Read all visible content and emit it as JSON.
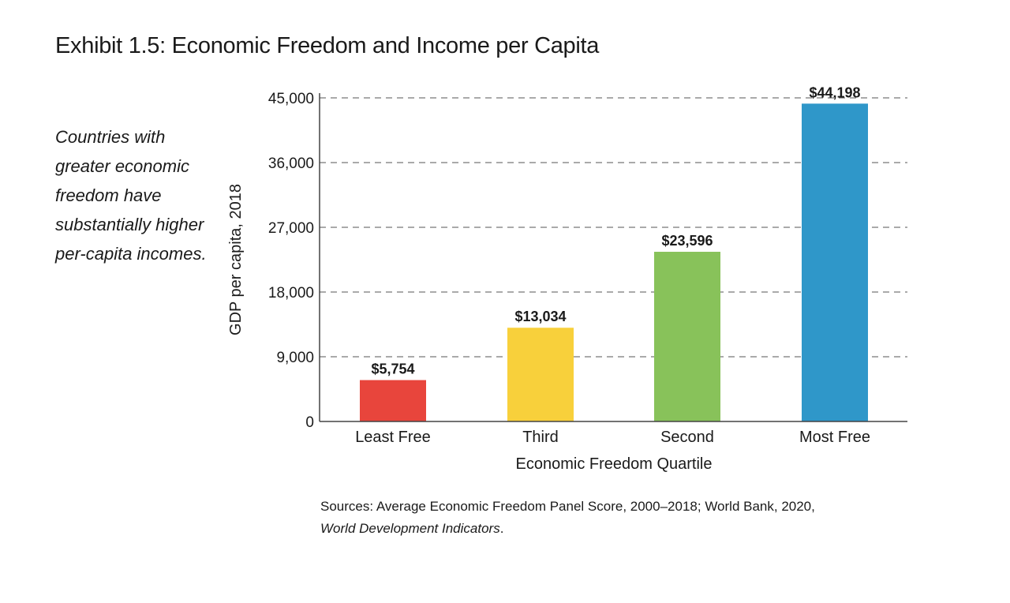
{
  "title": "Exhibit 1.5: Economic Freedom and Income per Capita",
  "subtitle": "Countries with greater economic freedom have substantially higher per-capita incomes.",
  "source": {
    "text": "Sources: Average Economic Freedom Panel Score, 2000–2018; World Bank, 2020,",
    "italic": "World Development Indicators",
    "end": "."
  },
  "chart_data": {
    "type": "bar",
    "categories": [
      "Least Free",
      "Third",
      "Second",
      "Most Free"
    ],
    "values": [
      5754,
      13034,
      23596,
      44198
    ],
    "data_labels": [
      "$5,754",
      "$13,034",
      "$23,596",
      "$44,198"
    ],
    "colors": [
      "#e8453c",
      "#f8d03b",
      "#88c25a",
      "#2f97c9"
    ],
    "xlabel": "Economic Freedom Quartile",
    "ylabel": "GDP per capita, 2018",
    "ylim": [
      0,
      45000
    ],
    "yticks": [
      0,
      9000,
      18000,
      27000,
      36000,
      45000
    ],
    "ytick_labels": [
      "0",
      "9,000",
      "18,000",
      "27,000",
      "36,000",
      "45,000"
    ],
    "grid": "horizontal dashed"
  }
}
